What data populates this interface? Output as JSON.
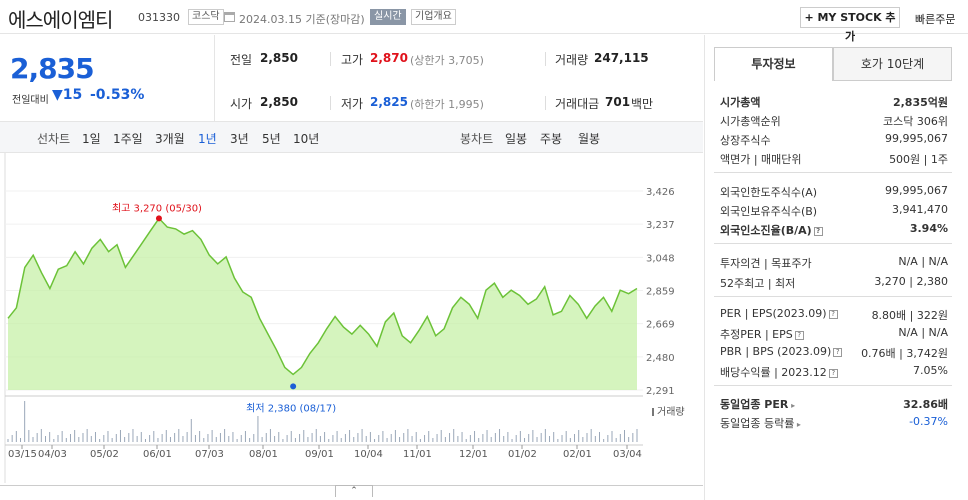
{
  "header": {
    "stock_name": "에스에이엠티",
    "code": "031330",
    "market_badge": "코스닥",
    "date": "2024.03.15  기준(장마감)",
    "realtime_badge": "실시간",
    "company_badge": "기업개요",
    "mystock_btn": "+ MY STOCK 추가",
    "fast_order": "빠른주문"
  },
  "price": {
    "current": "2,835",
    "prev_label": "전일대비",
    "change": "▼15",
    "change_pct": "-0.53%"
  },
  "summary": {
    "prev_close_label": "전일",
    "prev_close": "2,850",
    "high_label": "고가",
    "high": "2,870",
    "upper_limit": "(상한가 3,705)",
    "volume_label": "거래량",
    "volume": "247,115",
    "open_label": "시가",
    "open": "2,850",
    "low_label": "저가",
    "low": "2,825",
    "lower_limit": "(하한가 1,995)",
    "amount_label": "거래대금",
    "amount": "701",
    "amount_unit": "백만"
  },
  "tabs": {
    "line_chart": "선차트",
    "d1": "1일",
    "w1": "1주일",
    "m3": "3개월",
    "y1": "1년",
    "y3": "3년",
    "y5": "5년",
    "y10": "10년",
    "candle_chart": "봉차트",
    "daily": "일봉",
    "weekly": "주봉",
    "monthly": "월봉"
  },
  "chart_data": {
    "type": "area",
    "y_ticks": [
      "3,426",
      "3,237",
      "3,048",
      "2,859",
      "2,669",
      "2,480",
      "2,291"
    ],
    "x_ticks": [
      "03/15",
      "04/03",
      "05/02",
      "06/01",
      "07/03",
      "08/01",
      "09/01",
      "10/04",
      "11/01",
      "12/01",
      "01/02",
      "02/01",
      "03/04"
    ],
    "ylim": [
      2291,
      3426
    ],
    "high_annotation": "최고 3,270 (05/30)",
    "low_annotation": "최저 2,380 (08/17)",
    "volume_label": "거래량",
    "high_value": 3270,
    "low_value": 2380,
    "values": [
      2700,
      2760,
      2990,
      3060,
      2960,
      2870,
      2980,
      3000,
      3080,
      3010,
      3100,
      3150,
      3080,
      3120,
      2990,
      3060,
      3130,
      3200,
      3270,
      3220,
      3210,
      3180,
      3200,
      3150,
      3060,
      3010,
      3050,
      2930,
      2850,
      2820,
      2700,
      2610,
      2520,
      2420,
      2380,
      2420,
      2500,
      2560,
      2640,
      2710,
      2650,
      2610,
      2660,
      2610,
      2540,
      2680,
      2730,
      2600,
      2560,
      2630,
      2710,
      2600,
      2640,
      2760,
      2820,
      2780,
      2700,
      2860,
      2900,
      2820,
      2860,
      2830,
      2780,
      2810,
      2880,
      2720,
      2740,
      2830,
      2780,
      2700,
      2770,
      2820,
      2740,
      2860,
      2840,
      2870
    ]
  },
  "right": {
    "tab1": "투자정보",
    "tab2": "호가 10단계",
    "market_cap_label": "시가총액",
    "market_cap": "2,835억원",
    "cap_rank_label": "시가총액순위",
    "cap_rank": "코스닥 306위",
    "shares_label": "상장주식수",
    "shares": "99,995,067",
    "par_label": "액면가 | 매매단위",
    "par": "500원 | 1주",
    "foreign_limit_label": "외국인한도주식수(A)",
    "foreign_limit": "99,995,067",
    "foreign_hold_label": "외국인보유주식수(B)",
    "foreign_hold": "3,941,470",
    "foreign_ratio_label": "외국인소진율(B/A)",
    "foreign_ratio": "3.94%",
    "opinion_label": "투자의견 | 목표주가",
    "opinion": "N/A | N/A",
    "w52_label": "52주최고 | 최저",
    "w52": "3,270 | 2,380",
    "per_label": "PER | EPS(2023.09)",
    "per": "8.80배 | 322원",
    "est_per_label": "추정PER | EPS",
    "est_per": "N/A | N/A",
    "pbr_label": "PBR | BPS (2023.09)",
    "pbr": "0.76배 | 3,742원",
    "div_label": "배당수익률 | 2023.12",
    "div": "7.05%",
    "ind_per_label": "동일업종 PER",
    "ind_per": "32.86배",
    "ind_rate_label": "동일업종 등락률",
    "ind_rate": "-0.37%"
  },
  "colors": {
    "up": "#e0121b",
    "down": "#1a5fd6",
    "chart_fill": "#c7f0a8",
    "chart_line": "#6cc238"
  }
}
